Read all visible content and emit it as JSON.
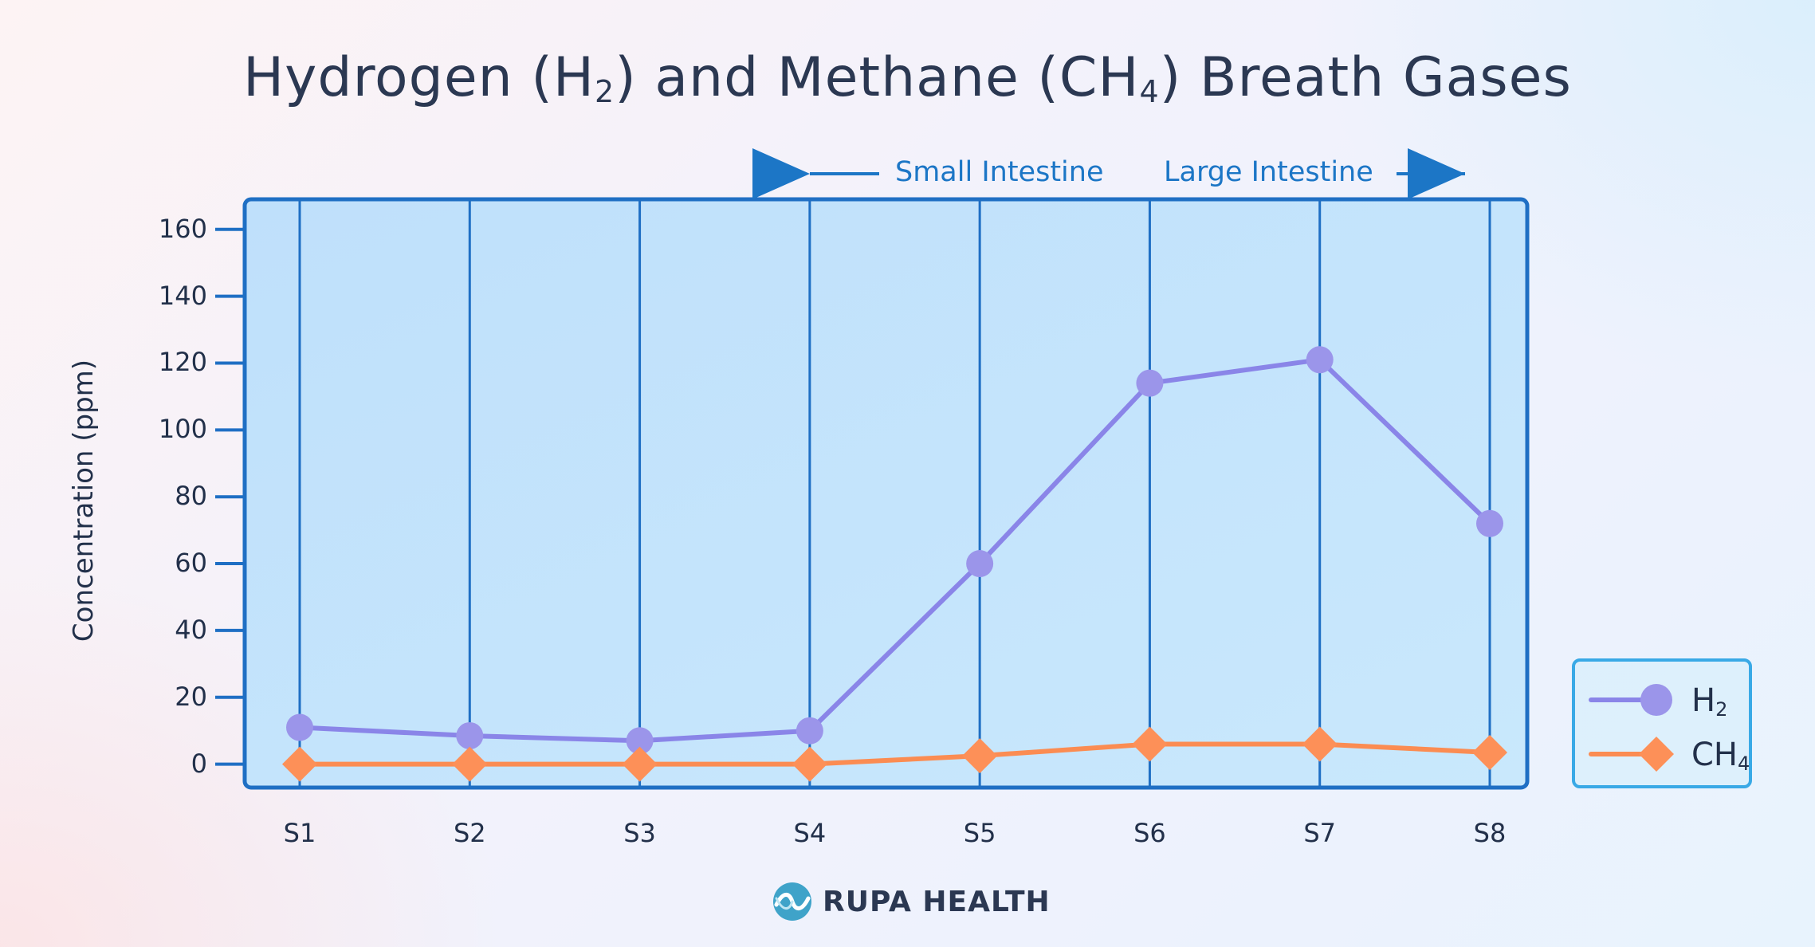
{
  "title": {
    "part1": "Hydrogen (H",
    "sub1": "2",
    "part2": ") and Methane (CH",
    "sub2": "4",
    "part3": ") Breath Gases"
  },
  "regions": {
    "left_label": "Small Intestine",
    "right_label": "Large Intestine"
  },
  "brand": {
    "name": "RUPA HEALTH"
  },
  "colors": {
    "h2": "#8a85e8",
    "ch4": "#fb8c52",
    "axis": "#1f6fc4",
    "plot_fill": "#c4e4fb",
    "region_text": "#1c76c6"
  },
  "chart_data": {
    "type": "line",
    "title": "Hydrogen (H2) and Methane (CH4) Breath Gases",
    "xlabel": "",
    "ylabel": "Concentration (ppm)",
    "categories": [
      "S1",
      "S2",
      "S3",
      "S4",
      "S5",
      "S6",
      "S7",
      "S8"
    ],
    "yticks": [
      0,
      20,
      40,
      60,
      80,
      100,
      120,
      140,
      160
    ],
    "ylim": [
      -7,
      169
    ],
    "grid": "vertical",
    "legend_position": "right",
    "series": [
      {
        "name": "H",
        "sub": "2",
        "marker": "circle",
        "values": [
          11,
          8.5,
          7,
          10,
          60,
          114,
          121,
          72
        ]
      },
      {
        "name": "CH",
        "sub": "4",
        "marker": "diamond",
        "values": [
          0,
          0,
          0,
          0,
          2.5,
          6,
          6,
          3.5
        ]
      }
    ]
  }
}
